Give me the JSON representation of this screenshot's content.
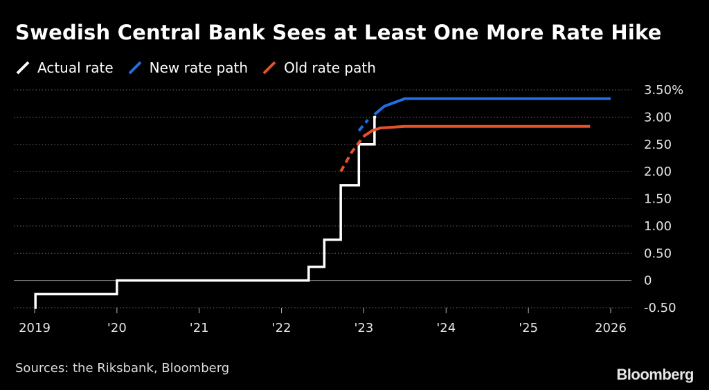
{
  "chart_data": {
    "type": "line",
    "title": "Swedish Central Bank Sees at Least One More Rate Hike",
    "legend": [
      {
        "name": "Actual rate",
        "color": "#ffffff"
      },
      {
        "name": "New rate path",
        "color": "#1f6fe5"
      },
      {
        "name": "Old rate path",
        "color": "#e5522a"
      }
    ],
    "ylim": [
      -0.5,
      3.5
    ],
    "yticks": [
      {
        "value": 3.5,
        "label": "3.50%"
      },
      {
        "value": 3.0,
        "label": "3.00"
      },
      {
        "value": 2.5,
        "label": "2.50"
      },
      {
        "value": 2.0,
        "label": "2.00"
      },
      {
        "value": 1.5,
        "label": "1.50"
      },
      {
        "value": 1.0,
        "label": "1.00"
      },
      {
        "value": 0.5,
        "label": "0.50"
      },
      {
        "value": 0.0,
        "label": "0"
      },
      {
        "value": -0.5,
        "label": "-0.50"
      }
    ],
    "xlim": [
      2019.0,
      2026.0
    ],
    "xticks": [
      {
        "value": 2019,
        "label": "2019"
      },
      {
        "value": 2020,
        "label": "'20"
      },
      {
        "value": 2021,
        "label": "'21"
      },
      {
        "value": 2022,
        "label": "'22"
      },
      {
        "value": 2023,
        "label": "'23"
      },
      {
        "value": 2024,
        "label": "'24"
      },
      {
        "value": 2025,
        "label": "'25"
      },
      {
        "value": 2026,
        "label": "2026"
      }
    ],
    "series": [
      {
        "name": "Actual rate",
        "color": "#ffffff",
        "step": true,
        "dashed": false,
        "points": [
          [
            2019.0,
            -0.5
          ],
          [
            2019.01,
            -0.25
          ],
          [
            2020.0,
            0.0
          ],
          [
            2022.33,
            0.25
          ],
          [
            2022.52,
            0.75
          ],
          [
            2022.72,
            1.75
          ],
          [
            2022.9,
            1.75
          ],
          [
            2022.94,
            2.5
          ],
          [
            2023.13,
            3.0
          ],
          [
            2023.15,
            3.0
          ]
        ]
      },
      {
        "name": "Old rate path",
        "color": "#e5522a",
        "step": false,
        "dashed_until": 2023.0,
        "points": [
          [
            2022.72,
            2.0
          ],
          [
            2022.85,
            2.35
          ],
          [
            2023.0,
            2.65
          ],
          [
            2023.1,
            2.75
          ],
          [
            2023.2,
            2.8
          ],
          [
            2023.5,
            2.83
          ],
          [
            2025.0,
            2.83
          ],
          [
            2025.75,
            2.83
          ]
        ]
      },
      {
        "name": "New rate path",
        "color": "#1f6fe5",
        "step": false,
        "dashed_until": 2023.1,
        "points": [
          [
            2022.94,
            2.75
          ],
          [
            2023.05,
            2.95
          ],
          [
            2023.13,
            3.05
          ],
          [
            2023.25,
            3.2
          ],
          [
            2023.5,
            3.34
          ],
          [
            2024.5,
            3.34
          ],
          [
            2026.0,
            3.34
          ]
        ]
      }
    ]
  },
  "footer": {
    "source": "Sources: the Riksbank, Bloomberg",
    "brand": "Bloomberg"
  }
}
